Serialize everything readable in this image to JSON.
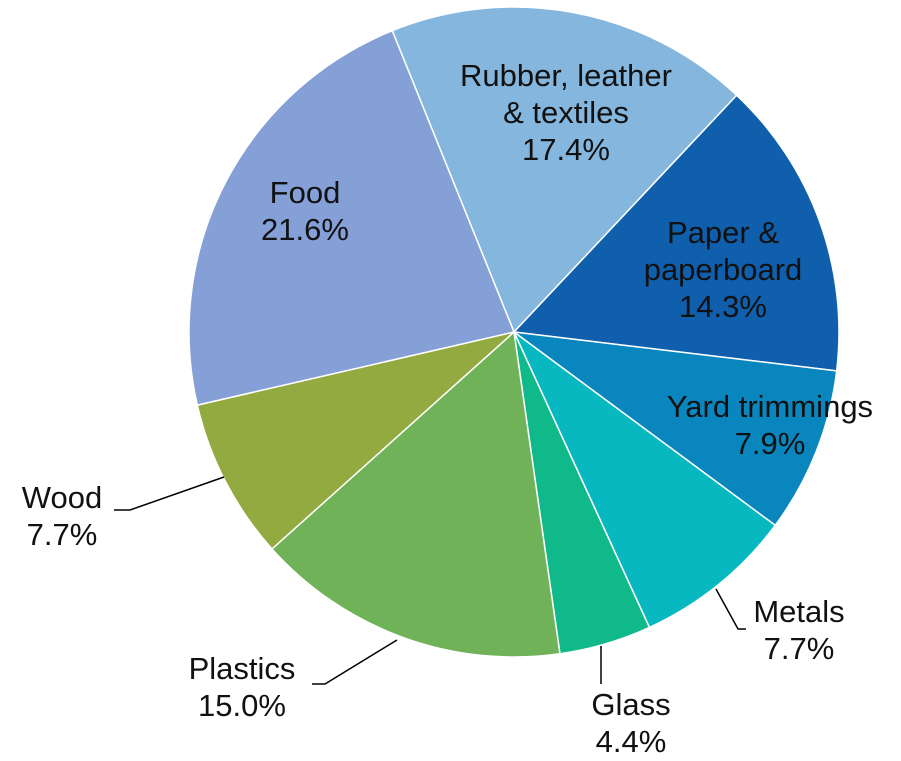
{
  "chart_data": {
    "type": "pie",
    "title": "",
    "start_angle_deg": -22,
    "direction": "clockwise",
    "slices": [
      {
        "key": "rubber",
        "label": [
          "Rubber, leather",
          "& textiles"
        ],
        "value": 17.4,
        "value_label": "17.4%",
        "color": "#85b7de"
      },
      {
        "key": "paper",
        "label": [
          "Paper &",
          "paperboard"
        ],
        "value": 14.3,
        "value_label": "14.3%",
        "color": "#0f5fad"
      },
      {
        "key": "yard",
        "label": [
          "Yard trimmings"
        ],
        "value": 7.9,
        "value_label": "7.9%",
        "color": "#0a86bf"
      },
      {
        "key": "metals",
        "label": [
          "Metals"
        ],
        "value": 7.7,
        "value_label": "7.7%",
        "color": "#08b8c1"
      },
      {
        "key": "glass",
        "label": [
          "Glass"
        ],
        "value": 4.4,
        "value_label": "4.4%",
        "color": "#10b98a"
      },
      {
        "key": "plastics",
        "label": [
          "Plastics"
        ],
        "value": 15.0,
        "value_label": "15.0%",
        "color": "#6fb257"
      },
      {
        "key": "wood",
        "label": [
          "Wood"
        ],
        "value": 7.7,
        "value_label": "7.7%",
        "color": "#93aa40"
      },
      {
        "key": "food",
        "label": [
          "Food"
        ],
        "value": 21.6,
        "value_label": "21.6%",
        "color": "#85a0d6"
      }
    ]
  }
}
